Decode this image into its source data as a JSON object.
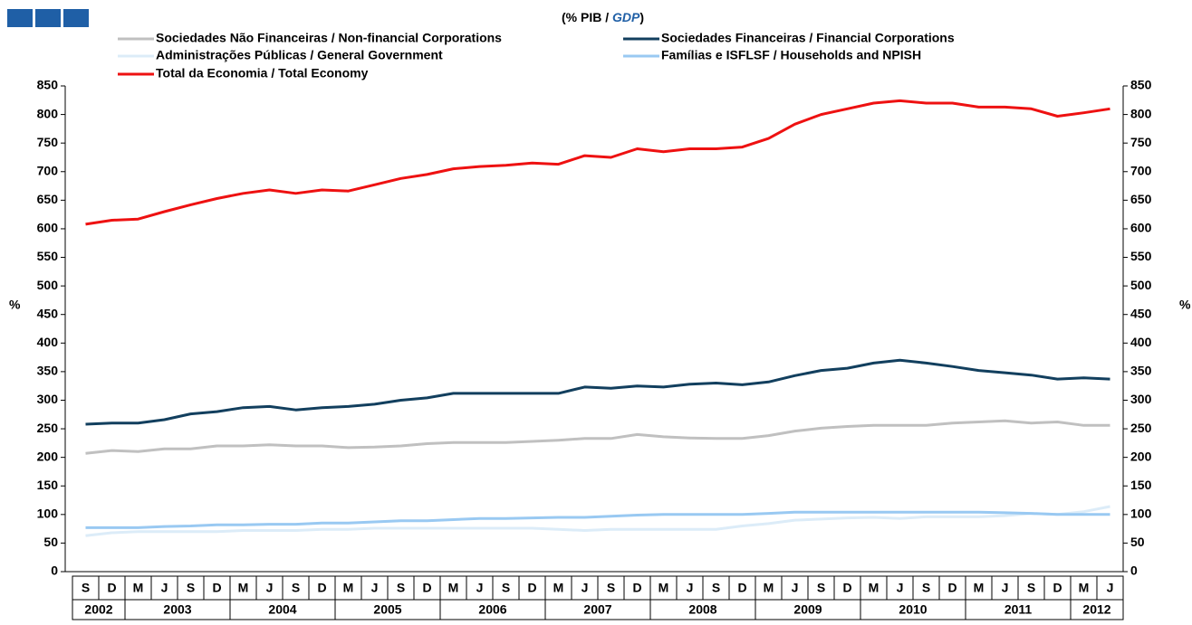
{
  "chart_data": {
    "type": "line",
    "title_parts": [
      "(% PIB / ",
      "GDP",
      ")"
    ],
    "ylabel": "%",
    "y2label": "%",
    "categories": [
      "S",
      "D",
      "M",
      "J",
      "S",
      "D",
      "M",
      "J",
      "S",
      "D",
      "M",
      "J",
      "S",
      "D",
      "M",
      "J",
      "S",
      "D",
      "M",
      "J",
      "S",
      "D",
      "M",
      "J",
      "S",
      "D",
      "M",
      "J",
      "S",
      "D",
      "M",
      "J",
      "S",
      "D",
      "M",
      "J",
      "S",
      "D",
      "M",
      "J"
    ],
    "year_labels": [
      "2002",
      null,
      "2003",
      null,
      null,
      null,
      "2004",
      null,
      null,
      null,
      "2005",
      null,
      null,
      null,
      "2006",
      null,
      null,
      null,
      "2007",
      null,
      null,
      null,
      "2008",
      null,
      null,
      null,
      "2009",
      null,
      null,
      null,
      "2010",
      null,
      null,
      null,
      "2011",
      null,
      null,
      null,
      "2012",
      null
    ],
    "series": [
      {
        "name": "Sociedades Não Financeiras / Non-financial Corporations",
        "color": "#c0c0c0",
        "values": [
          207,
          212,
          210,
          215,
          215,
          220,
          220,
          222,
          220,
          220,
          217,
          218,
          220,
          224,
          226,
          226,
          226,
          228,
          230,
          233,
          233,
          240,
          236,
          234,
          233,
          233,
          238,
          246,
          251,
          254,
          256,
          256,
          256,
          260,
          262,
          264,
          260,
          262,
          256,
          256
        ]
      },
      {
        "name": "Sociedades Financeiras / Financial Corporations",
        "color": "#123f5e",
        "values": [
          258,
          260,
          260,
          266,
          276,
          280,
          287,
          289,
          283,
          287,
          289,
          293,
          300,
          304,
          312,
          312,
          312,
          312,
          312,
          323,
          321,
          325,
          323,
          328,
          330,
          327,
          332,
          343,
          352,
          356,
          365,
          370,
          365,
          359,
          352,
          348,
          344,
          337,
          339,
          337
        ]
      },
      {
        "name": "Administrações Públicas / General Government",
        "color": "#dcecf8",
        "values": [
          63,
          68,
          70,
          70,
          70,
          70,
          72,
          72,
          72,
          74,
          74,
          76,
          76,
          76,
          76,
          76,
          76,
          76,
          74,
          72,
          74,
          74,
          74,
          74,
          74,
          80,
          84,
          90,
          92,
          94,
          95,
          93,
          96,
          96,
          96,
          98,
          102,
          100,
          105,
          114
        ]
      },
      {
        "name": "Famílias e ISFLSF / Households and NPISH",
        "color": "#99c9f2",
        "values": [
          77,
          77,
          77,
          79,
          80,
          82,
          82,
          83,
          83,
          85,
          85,
          87,
          89,
          89,
          91,
          93,
          93,
          94,
          95,
          95,
          97,
          99,
          100,
          100,
          100,
          100,
          102,
          104,
          104,
          104,
          104,
          104,
          104,
          104,
          104,
          103,
          102,
          100,
          100,
          100
        ]
      },
      {
        "name": "Total da Economia / Total Economy",
        "color": "#ee1111",
        "values": [
          608,
          615,
          617,
          630,
          642,
          653,
          662,
          668,
          662,
          668,
          666,
          677,
          688,
          695,
          705,
          709,
          711,
          715,
          713,
          728,
          725,
          740,
          735,
          740,
          740,
          743,
          758,
          783,
          800,
          810,
          820,
          824,
          820,
          820,
          813,
          813,
          810,
          797,
          803,
          810
        ]
      }
    ],
    "ylim": [
      0,
      850
    ],
    "yticks": [
      0,
      50,
      100,
      150,
      200,
      250,
      300,
      350,
      400,
      450,
      500,
      550,
      600,
      650,
      700,
      750,
      800,
      850
    ],
    "y2lim": [
      0,
      850
    ],
    "y2ticks": [
      0,
      50,
      100,
      150,
      200,
      250,
      300,
      350,
      400,
      450,
      500,
      550,
      600,
      650,
      700,
      750,
      800,
      850
    ]
  }
}
